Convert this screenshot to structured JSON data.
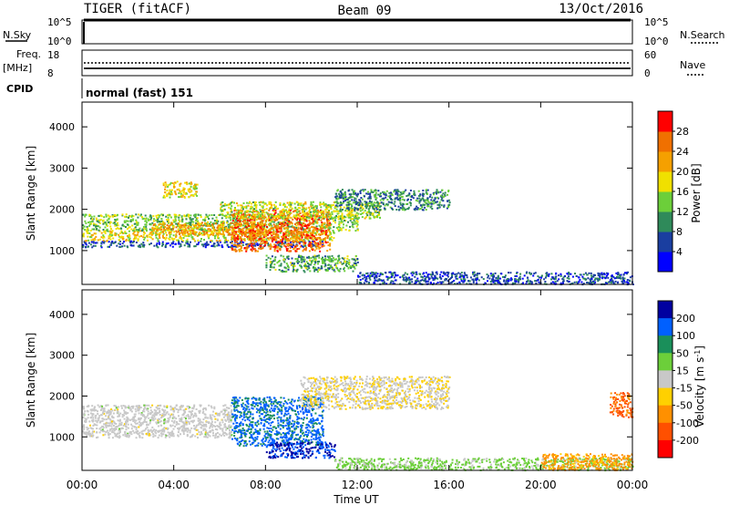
{
  "header": {
    "radar": "TIGER (fitACF)",
    "beam": "Beam 09",
    "date": "13/Oct/2016"
  },
  "top_panels": {
    "nsky_label": "N.Sky",
    "nsky_ticks": [
      "10^5",
      "10^0"
    ],
    "nsearch_label": "N.Search",
    "nsearch_ticks": [
      "10^5",
      "10^0"
    ],
    "freq_label": "Freq.",
    "freq_unit": "[MHz]",
    "freq_ticks": [
      "18",
      "8"
    ],
    "nave_label": "Nave",
    "nave_ticks": [
      "60",
      "0"
    ],
    "cpid_label": "CPID",
    "cpid_value": "normal (fast) 151"
  },
  "colors": {
    "power_scale": [
      "#0000ff",
      "#1a3ea0",
      "#2f8a5a",
      "#6ccf3a",
      "#f0e000",
      "#f5a000",
      "#f07000",
      "#ff0000"
    ],
    "velocity_scale": [
      "#0000a0",
      "#0060ff",
      "#1a8f5a",
      "#6ccf3a",
      "#c8c8c8",
      "#ffd000",
      "#ff9000",
      "#ff5000",
      "#ff0000"
    ]
  },
  "chart_data": [
    {
      "type": "heatmap",
      "name": "power",
      "title": "",
      "xlabel": "",
      "ylabel": "Slant Range [km]",
      "x_ticks": [
        "00:00",
        "04:00",
        "08:00",
        "12:00",
        "16:00",
        "20:00",
        "00:00"
      ],
      "xlim_hours": [
        0,
        24
      ],
      "y_ticks": [
        1000,
        2000,
        3000,
        4000
      ],
      "ylim": [
        180,
        4600
      ],
      "colorbar": {
        "label": "Power [dB]",
        "ticks": [
          4,
          8,
          12,
          16,
          20,
          24,
          28
        ],
        "range": [
          0,
          32
        ]
      },
      "regions": [
        {
          "t": [
            0.0,
            10.5
          ],
          "r": [
            1100,
            1250
          ],
          "value": 6
        },
        {
          "t": [
            0.0,
            11.0
          ],
          "r": [
            1250,
            1500
          ],
          "value": 18
        },
        {
          "t": [
            0.0,
            12.0
          ],
          "r": [
            1500,
            1900
          ],
          "value": 14
        },
        {
          "t": [
            3.0,
            8.0
          ],
          "r": [
            1400,
            1700
          ],
          "value": 22
        },
        {
          "t": [
            6.5,
            10.8
          ],
          "r": [
            1000,
            2000
          ],
          "value": 26
        },
        {
          "t": [
            6.0,
            13.0
          ],
          "r": [
            1800,
            2200
          ],
          "value": 16
        },
        {
          "t": [
            11.0,
            16.0
          ],
          "r": [
            2000,
            2500
          ],
          "value": 10
        },
        {
          "t": [
            3.5,
            5.0
          ],
          "r": [
            2300,
            2700
          ],
          "value": 18
        },
        {
          "t": [
            8.0,
            12.0
          ],
          "r": [
            500,
            900
          ],
          "value": 12
        },
        {
          "t": [
            12.0,
            24.0
          ],
          "r": [
            200,
            500
          ],
          "value": 6
        }
      ]
    },
    {
      "type": "heatmap",
      "name": "velocity",
      "title": "",
      "xlabel": "Time UT",
      "ylabel": "Slant Range [km]",
      "x_ticks": [
        "00:00",
        "04:00",
        "08:00",
        "12:00",
        "16:00",
        "20:00",
        "00:00"
      ],
      "xlim_hours": [
        0,
        24
      ],
      "y_ticks": [
        1000,
        2000,
        3000,
        4000
      ],
      "ylim": [
        180,
        4600
      ],
      "colorbar": {
        "label": "Velocity [m s^-1]",
        "ticks": [
          200,
          100,
          50,
          15,
          -15,
          -50,
          -100,
          -200
        ],
        "range": [
          -250,
          250
        ]
      },
      "regions": [
        {
          "t": [
            0.0,
            6.5
          ],
          "r": [
            1000,
            1800
          ],
          "value": 0
        },
        {
          "t": [
            6.5,
            10.5
          ],
          "r": [
            800,
            2000
          ],
          "value": 150
        },
        {
          "t": [
            8.0,
            11.0
          ],
          "r": [
            500,
            900
          ],
          "value": 200
        },
        {
          "t": [
            9.5,
            16.0
          ],
          "r": [
            1700,
            2500
          ],
          "value": -20
        },
        {
          "t": [
            11.0,
            24.0
          ],
          "r": [
            200,
            500
          ],
          "value": 40
        },
        {
          "t": [
            20.0,
            24.0
          ],
          "r": [
            200,
            600
          ],
          "value": -100
        },
        {
          "t": [
            23.0,
            24.0
          ],
          "r": [
            1500,
            2100
          ],
          "value": -150
        }
      ]
    }
  ]
}
